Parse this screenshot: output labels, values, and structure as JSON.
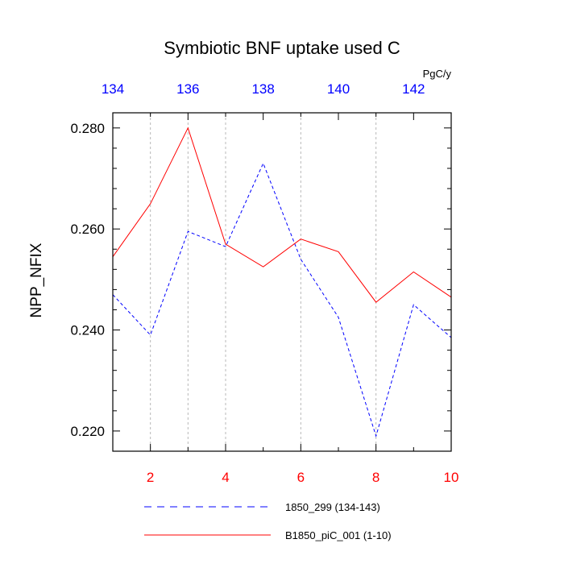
{
  "chart_data": {
    "type": "line",
    "title": "Symbiotic BNF uptake used C",
    "ylabel": "NPP_NFIX",
    "xlabel": "",
    "units": "PgC/y",
    "ylim": [
      0.216,
      0.283
    ],
    "y_ticks": [
      "0.220",
      "0.240",
      "0.260",
      "0.280"
    ],
    "y_tick_values": [
      0.22,
      0.24,
      0.26,
      0.28
    ],
    "y_minor_tick_values": [
      0.216,
      0.224,
      0.228,
      0.232,
      0.236,
      0.244,
      0.248,
      0.252,
      0.256,
      0.264,
      0.268,
      0.272,
      0.276
    ],
    "bottom_axis": {
      "range": [
        1,
        10
      ],
      "ticks": [
        "2",
        "4",
        "6",
        "8",
        "10"
      ],
      "tick_values": [
        2,
        4,
        6,
        8,
        10
      ],
      "minor_tick_values": [
        1,
        3,
        5,
        7,
        9
      ],
      "color": "#ff0000"
    },
    "top_axis": {
      "range": [
        134,
        143
      ],
      "ticks": [
        "134",
        "136",
        "138",
        "140",
        "142"
      ],
      "tick_values": [
        134,
        136,
        138,
        140,
        142
      ],
      "minor_tick_values": [
        135,
        137,
        139,
        141,
        143
      ],
      "color": "#0000ff"
    },
    "grid_x": [
      2,
      3,
      4,
      6,
      8
    ],
    "series": [
      {
        "name": "1850_299 (134-143)",
        "color": "#0000ff",
        "style": "dashed",
        "axis": "top",
        "x": [
          134,
          135,
          136,
          137,
          138,
          139,
          140,
          141,
          142,
          143
        ],
        "values": [
          0.247,
          0.239,
          0.2595,
          0.2565,
          0.273,
          0.254,
          0.2425,
          0.219,
          0.245,
          0.2385
        ]
      },
      {
        "name": "B1850_piC_001 (1-10)",
        "color": "#ff0000",
        "style": "solid",
        "axis": "bottom",
        "x": [
          1,
          2,
          3,
          4,
          5,
          6,
          7,
          8,
          9,
          10
        ],
        "values": [
          0.2545,
          0.265,
          0.28,
          0.257,
          0.2525,
          0.258,
          0.2555,
          0.2455,
          0.2515,
          0.2465
        ]
      }
    ]
  }
}
